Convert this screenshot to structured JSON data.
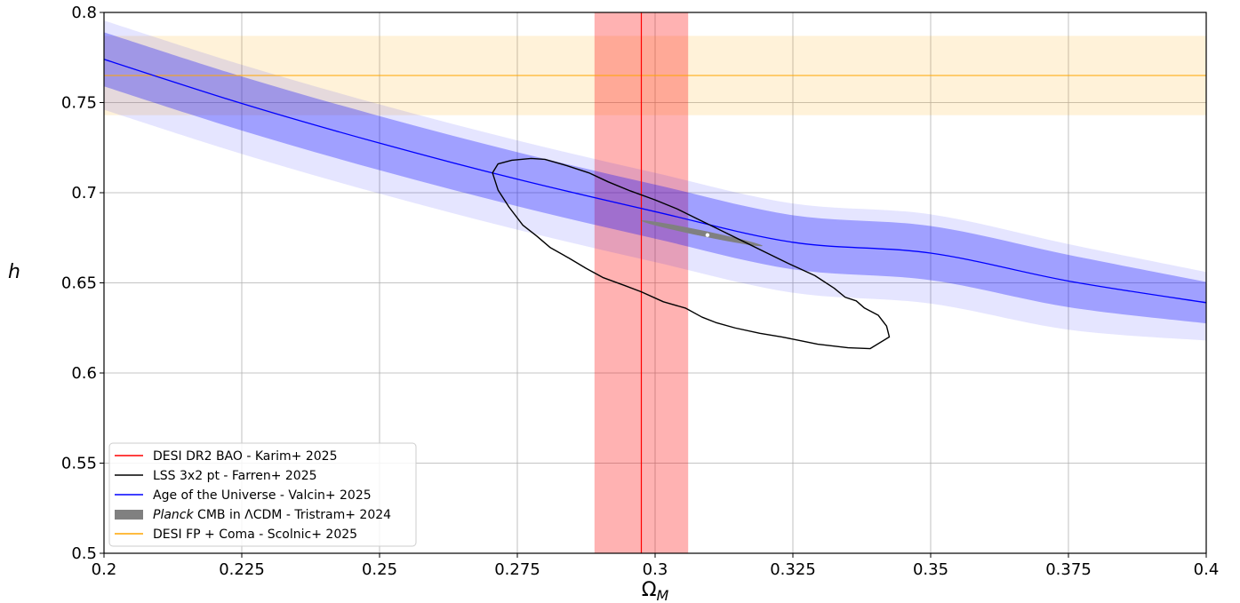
{
  "chart_data": {
    "type": "line",
    "title": "",
    "xlabel": "Ω_M",
    "ylabel": "h",
    "xlim": [
      0.2,
      0.4
    ],
    "ylim": [
      0.5,
      0.8
    ],
    "grid": true,
    "legend_placement": "lower-left",
    "x_ticks": [
      {
        "value": 0.2,
        "label": "0.2"
      },
      {
        "value": 0.225,
        "label": "0.225"
      },
      {
        "value": 0.25,
        "label": "0.25"
      },
      {
        "value": 0.275,
        "label": "0.275"
      },
      {
        "value": 0.3,
        "label": "0.3"
      },
      {
        "value": 0.325,
        "label": "0.325"
      },
      {
        "value": 0.35,
        "label": "0.35"
      },
      {
        "value": 0.375,
        "label": "0.375"
      },
      {
        "value": 0.4,
        "label": "0.4"
      }
    ],
    "y_ticks": [
      {
        "value": 0.5,
        "label": "0.5"
      },
      {
        "value": 0.55,
        "label": "0.55"
      },
      {
        "value": 0.6,
        "label": "0.6"
      },
      {
        "value": 0.65,
        "label": "0.65"
      },
      {
        "value": 0.7,
        "label": "0.7"
      },
      {
        "value": 0.75,
        "label": "0.75"
      },
      {
        "value": 0.8,
        "label": "0.8"
      }
    ],
    "series": [
      {
        "name": "DESI DR2 BAO - Karim+ 2025",
        "kind": "vertical-band",
        "color": "#ff0000",
        "central": 0.2975,
        "band_1sigma": [
          0.289,
          0.306
        ]
      },
      {
        "name": "LSS 3x2 pt - Farren+ 2025",
        "kind": "contour",
        "color": "#000000",
        "contour": [
          [
            0.2705,
            0.711
          ],
          [
            0.2715,
            0.716
          ],
          [
            0.274,
            0.718
          ],
          [
            0.2775,
            0.719
          ],
          [
            0.28,
            0.7185
          ],
          [
            0.284,
            0.715
          ],
          [
            0.288,
            0.711
          ],
          [
            0.2915,
            0.706
          ],
          [
            0.2955,
            0.701
          ],
          [
            0.3,
            0.696
          ],
          [
            0.304,
            0.691
          ],
          [
            0.308,
            0.685
          ],
          [
            0.312,
            0.679
          ],
          [
            0.316,
            0.673
          ],
          [
            0.32,
            0.667
          ],
          [
            0.324,
            0.661
          ],
          [
            0.329,
            0.654
          ],
          [
            0.3325,
            0.647
          ],
          [
            0.3345,
            0.642
          ],
          [
            0.3365,
            0.64
          ],
          [
            0.338,
            0.636
          ],
          [
            0.3405,
            0.632
          ],
          [
            0.342,
            0.626
          ],
          [
            0.3425,
            0.62
          ],
          [
            0.339,
            0.6135
          ],
          [
            0.335,
            0.614
          ],
          [
            0.3295,
            0.616
          ],
          [
            0.323,
            0.62
          ],
          [
            0.319,
            0.622
          ],
          [
            0.3145,
            0.625
          ],
          [
            0.311,
            0.628
          ],
          [
            0.3085,
            0.631
          ],
          [
            0.3055,
            0.636
          ],
          [
            0.3015,
            0.6395
          ],
          [
            0.2975,
            0.645
          ],
          [
            0.2945,
            0.6485
          ],
          [
            0.2905,
            0.653
          ],
          [
            0.2875,
            0.658
          ],
          [
            0.2845,
            0.6635
          ],
          [
            0.281,
            0.6695
          ],
          [
            0.2785,
            0.676
          ],
          [
            0.276,
            0.682
          ],
          [
            0.2735,
            0.692
          ],
          [
            0.2715,
            0.7015
          ],
          [
            0.2705,
            0.711
          ]
        ]
      },
      {
        "name": "Age of the Universe - Valcin+ 2025",
        "kind": "curve-band",
        "color": "#0000ff",
        "x": [
          0.2,
          0.225,
          0.25,
          0.275,
          0.3,
          0.325,
          0.35,
          0.375,
          0.4
        ],
        "central": [
          0.774,
          0.7495,
          0.7275,
          0.7075,
          0.6895,
          0.6725,
          0.6665,
          0.651,
          0.639
        ],
        "band_1sigma_low": [
          0.759,
          0.7345,
          0.7125,
          0.6925,
          0.6745,
          0.6575,
          0.6515,
          0.6365,
          0.6275
        ],
        "band_1sigma_high": [
          0.789,
          0.7645,
          0.7425,
          0.7225,
          0.7045,
          0.6875,
          0.6815,
          0.6655,
          0.6505
        ],
        "band_2sigma_low": [
          0.746,
          0.7215,
          0.6995,
          0.6795,
          0.6615,
          0.6445,
          0.6385,
          0.624,
          0.618
        ],
        "band_2sigma_high": [
          0.7955,
          0.771,
          0.749,
          0.729,
          0.711,
          0.694,
          0.688,
          0.6715,
          0.656
        ]
      },
      {
        "name": "Planck CMB in ΛCDM - Tristram+ 2024",
        "kind": "thin-ellipse",
        "color": "#808080",
        "from": [
          0.2975,
          0.6845
        ],
        "to": [
          0.3195,
          0.6705
        ],
        "best_fit": [
          0.3095,
          0.6765
        ]
      },
      {
        "name": "DESI FP + Coma - Scolnic+ 2025",
        "kind": "horizontal-band",
        "color": "#ffa500",
        "central": 0.765,
        "band_1sigma": [
          0.743,
          0.787
        ]
      }
    ],
    "legend": [
      {
        "label": "DESI DR2 BAO - Karim+ 2025",
        "swatch": "line",
        "color": "#ff0000",
        "italic_prefix": ""
      },
      {
        "label": "LSS 3x2 pt - Farren+ 2025",
        "swatch": "line",
        "color": "#000000",
        "italic_prefix": ""
      },
      {
        "label": "Age of the Universe - Valcin+ 2025",
        "swatch": "line",
        "color": "#0000ff",
        "italic_prefix": ""
      },
      {
        "label": " CMB in ΛCDM - Tristram+ 2024",
        "swatch": "patch",
        "color": "#808080",
        "italic_prefix": "Planck"
      },
      {
        "label": "DESI FP + Coma - Scolnic+ 2025",
        "swatch": "line",
        "color": "#ffa500",
        "italic_prefix": ""
      }
    ]
  }
}
